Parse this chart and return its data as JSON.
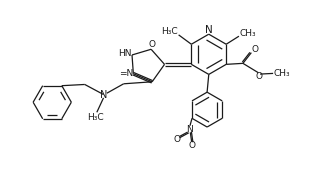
{
  "bg_color": "#ffffff",
  "line_color": "#1a1a1a",
  "line_width": 0.9,
  "font_size": 6.5,
  "figsize": [
    3.19,
    1.81
  ],
  "dpi": 100,
  "xlim": [
    0,
    9.5
  ],
  "ylim": [
    0,
    5.4
  ]
}
